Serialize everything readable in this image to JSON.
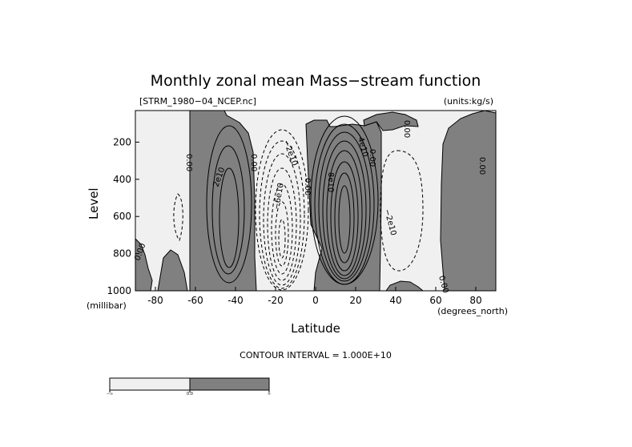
{
  "chart_data": {
    "type": "contour",
    "title": "Monthly zonal mean Mass−stream function",
    "file_label": "[STRM_1980−04_NCEP.nc]",
    "units_label": "(units:kg/s)",
    "xlabel": "Latitude",
    "x_units": "(degrees_north)",
    "ylabel": "Level",
    "y_units": "(millibar)",
    "xlim": [
      -90,
      90
    ],
    "ylim": [
      1000,
      30
    ],
    "x_ticks": [
      -80,
      -60,
      -40,
      -20,
      0,
      20,
      40,
      60,
      80
    ],
    "y_ticks": [
      200,
      400,
      600,
      800,
      1000
    ],
    "contour_interval": 10000000000,
    "contour_interval_text": "CONTOUR INTERVAL = 1.000E+10",
    "contour_labels": [
      "0.00",
      "0.00",
      "2e10",
      "0.00",
      "−2e10",
      "−6e10",
      "0.00",
      "4e10",
      "8e10",
      "0.00",
      "−2e10",
      "0.00",
      "0.00",
      "0.00"
    ],
    "fill_colors": {
      "negative": "#f0f0f0",
      "positive": "#808080"
    },
    "colorbar": {
      "labels": [
        "−∞",
        "0.0",
        "∞"
      ]
    },
    "cells": [
      {
        "sign": 1,
        "center": [
          -44,
          540
        ],
        "half_width": [
          18,
          330
        ],
        "peak": 40000000000
      },
      {
        "sign": -1,
        "center": [
          -20,
          600
        ],
        "half_width": [
          17,
          320
        ],
        "peak": -120000000000
      },
      {
        "sign": 1,
        "center": [
          13,
          580
        ],
        "half_width": [
          16,
          320
        ],
        "peak": 140000000000
      },
      {
        "sign": -1,
        "center": [
          45,
          550
        ],
        "half_width": [
          13,
          330
        ],
        "peak": -40000000000
      },
      {
        "sign": 1,
        "center": [
          87,
          560
        ],
        "half_width": [
          6,
          330
        ],
        "peak": 10000000000
      }
    ]
  }
}
